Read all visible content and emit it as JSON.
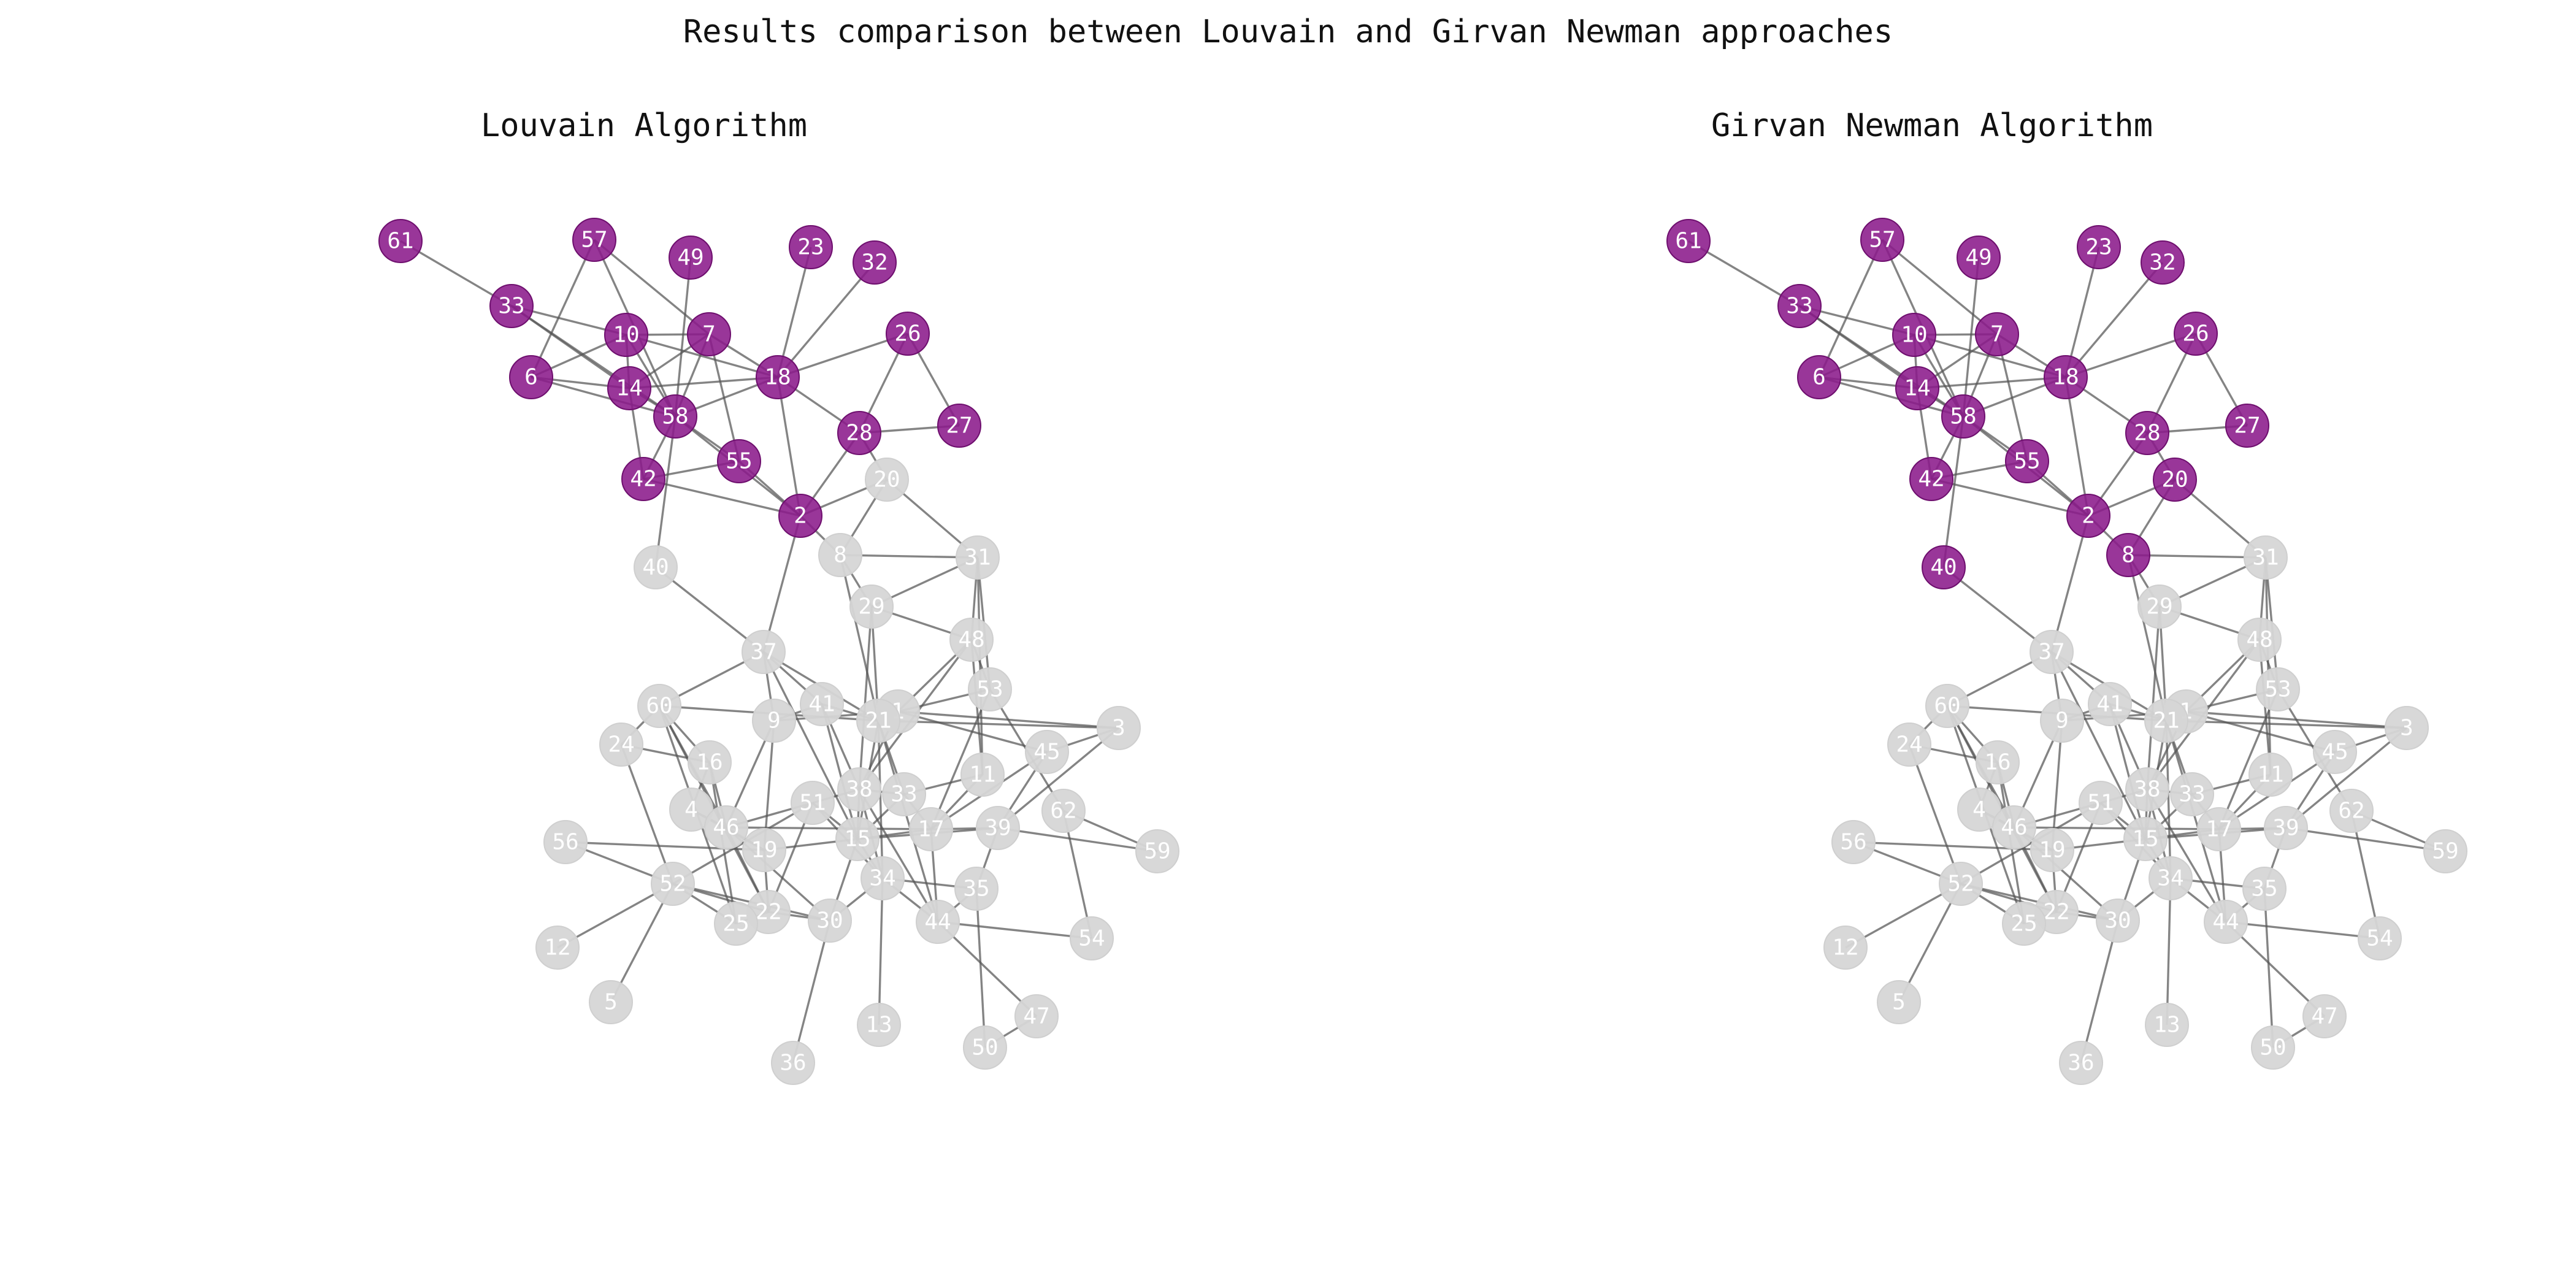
{
  "title": "Results comparison between Louvain and Girvan Newman approaches",
  "colors": {
    "community_highlight": "#8b1a8b",
    "community_highlight_stroke": "#6e0f6e",
    "community_other": "#d6d6d6",
    "edge": "#555555",
    "label": "#ffffff"
  },
  "nodes": [
    "61",
    "57",
    "49",
    "23",
    "32",
    "33",
    "10",
    "7",
    "26",
    "6",
    "14",
    "18",
    "58",
    "28",
    "27",
    "55",
    "42",
    "20",
    "2",
    "8",
    "31",
    "40",
    "29",
    "48",
    "37",
    "53",
    "60",
    "41",
    "1",
    "21",
    "9",
    "3",
    "24",
    "16",
    "45",
    "11",
    "4",
    "51",
    "38",
    "33b",
    "62",
    "46",
    "17",
    "39",
    "56",
    "59",
    "19",
    "15",
    "52",
    "34",
    "35",
    "22",
    "25",
    "30",
    "44",
    "54",
    "12",
    "47",
    "5",
    "13",
    "50",
    "36"
  ],
  "node_labels": {
    "33b": "33"
  },
  "edges": [
    [
      "61",
      "33"
    ],
    [
      "57",
      "6"
    ],
    [
      "57",
      "58"
    ],
    [
      "57",
      "7"
    ],
    [
      "33",
      "10"
    ],
    [
      "33",
      "58"
    ],
    [
      "33",
      "14"
    ],
    [
      "49",
      "58"
    ],
    [
      "23",
      "18"
    ],
    [
      "32",
      "18"
    ],
    [
      "10",
      "7"
    ],
    [
      "10",
      "18"
    ],
    [
      "10",
      "14"
    ],
    [
      "10",
      "58"
    ],
    [
      "10",
      "6"
    ],
    [
      "7",
      "18"
    ],
    [
      "7",
      "14"
    ],
    [
      "7",
      "58"
    ],
    [
      "7",
      "55"
    ],
    [
      "6",
      "14"
    ],
    [
      "6",
      "58"
    ],
    [
      "14",
      "58"
    ],
    [
      "14",
      "42"
    ],
    [
      "14",
      "18"
    ],
    [
      "18",
      "26"
    ],
    [
      "18",
      "28"
    ],
    [
      "18",
      "2"
    ],
    [
      "18",
      "58"
    ],
    [
      "26",
      "28"
    ],
    [
      "26",
      "27"
    ],
    [
      "28",
      "27"
    ],
    [
      "28",
      "2"
    ],
    [
      "28",
      "20"
    ],
    [
      "58",
      "55"
    ],
    [
      "58",
      "42"
    ],
    [
      "58",
      "2"
    ],
    [
      "55",
      "2"
    ],
    [
      "55",
      "42"
    ],
    [
      "42",
      "2"
    ],
    [
      "58",
      "40"
    ],
    [
      "2",
      "20"
    ],
    [
      "2",
      "8"
    ],
    [
      "2",
      "37"
    ],
    [
      "20",
      "8"
    ],
    [
      "20",
      "31"
    ],
    [
      "8",
      "31"
    ],
    [
      "8",
      "29"
    ],
    [
      "8",
      "21"
    ],
    [
      "31",
      "29"
    ],
    [
      "31",
      "48"
    ],
    [
      "31",
      "53"
    ],
    [
      "31",
      "11"
    ],
    [
      "29",
      "48"
    ],
    [
      "29",
      "21"
    ],
    [
      "29",
      "38"
    ],
    [
      "40",
      "37"
    ],
    [
      "37",
      "60"
    ],
    [
      "37",
      "9"
    ],
    [
      "37",
      "41"
    ],
    [
      "37",
      "15"
    ],
    [
      "37",
      "21"
    ],
    [
      "60",
      "24"
    ],
    [
      "60",
      "16"
    ],
    [
      "60",
      "46"
    ],
    [
      "60",
      "21"
    ],
    [
      "60",
      "25"
    ],
    [
      "60",
      "22"
    ],
    [
      "48",
      "53"
    ],
    [
      "48",
      "1"
    ],
    [
      "48",
      "11"
    ],
    [
      "48",
      "38"
    ],
    [
      "53",
      "1"
    ],
    [
      "53",
      "62"
    ],
    [
      "53",
      "17"
    ],
    [
      "9",
      "41"
    ],
    [
      "9",
      "1"
    ],
    [
      "9",
      "19"
    ],
    [
      "9",
      "46"
    ],
    [
      "41",
      "21"
    ],
    [
      "41",
      "38"
    ],
    [
      "41",
      "15"
    ],
    [
      "21",
      "1"
    ],
    [
      "21",
      "3"
    ],
    [
      "21",
      "15"
    ],
    [
      "21",
      "34"
    ],
    [
      "21",
      "33b"
    ],
    [
      "21",
      "44"
    ],
    [
      "1",
      "3"
    ],
    [
      "1",
      "45"
    ],
    [
      "1",
      "38"
    ],
    [
      "3",
      "45"
    ],
    [
      "3",
      "39"
    ],
    [
      "45",
      "39"
    ],
    [
      "45",
      "17"
    ],
    [
      "11",
      "33b"
    ],
    [
      "11",
      "17"
    ],
    [
      "62",
      "54"
    ],
    [
      "62",
      "59"
    ],
    [
      "39",
      "59"
    ],
    [
      "39",
      "17"
    ],
    [
      "39",
      "35"
    ],
    [
      "39",
      "15"
    ],
    [
      "24",
      "16"
    ],
    [
      "24",
      "52"
    ],
    [
      "16",
      "4"
    ],
    [
      "16",
      "46"
    ],
    [
      "16",
      "25"
    ],
    [
      "4",
      "46"
    ],
    [
      "4",
      "19"
    ],
    [
      "46",
      "19"
    ],
    [
      "46",
      "22"
    ],
    [
      "46",
      "51"
    ],
    [
      "46",
      "17"
    ],
    [
      "46",
      "30"
    ],
    [
      "56",
      "52"
    ],
    [
      "56",
      "19"
    ],
    [
      "52",
      "12"
    ],
    [
      "52",
      "5"
    ],
    [
      "52",
      "25"
    ],
    [
      "52",
      "22"
    ],
    [
      "52",
      "30"
    ],
    [
      "52",
      "51"
    ],
    [
      "19",
      "22"
    ],
    [
      "19",
      "15"
    ],
    [
      "51",
      "38"
    ],
    [
      "51",
      "15"
    ],
    [
      "51",
      "34"
    ],
    [
      "51",
      "22"
    ],
    [
      "38",
      "33b"
    ],
    [
      "38",
      "15"
    ],
    [
      "38",
      "34"
    ],
    [
      "38",
      "44"
    ],
    [
      "33b",
      "17"
    ],
    [
      "33b",
      "15"
    ],
    [
      "15",
      "34"
    ],
    [
      "15",
      "17"
    ],
    [
      "15",
      "30"
    ],
    [
      "34",
      "44"
    ],
    [
      "34",
      "35"
    ],
    [
      "34",
      "13"
    ],
    [
      "34",
      "30"
    ],
    [
      "17",
      "44"
    ],
    [
      "44",
      "54"
    ],
    [
      "44",
      "47"
    ],
    [
      "35",
      "50"
    ],
    [
      "30",
      "36"
    ],
    [
      "22",
      "30"
    ],
    [
      "25",
      "22"
    ],
    [
      "50",
      "47"
    ],
    [
      "35",
      "44"
    ]
  ],
  "panels": [
    {
      "title": "Louvain Algorithm",
      "highlighted": [
        "61",
        "57",
        "49",
        "23",
        "32",
        "33",
        "10",
        "7",
        "26",
        "6",
        "14",
        "18",
        "58",
        "28",
        "27",
        "55",
        "42",
        "2"
      ]
    },
    {
      "title": "Girvan Newman Algorithm",
      "highlighted": [
        "61",
        "57",
        "49",
        "23",
        "32",
        "33",
        "10",
        "7",
        "26",
        "6",
        "14",
        "18",
        "58",
        "28",
        "27",
        "55",
        "42",
        "2",
        "20",
        "8",
        "40"
      ]
    }
  ]
}
